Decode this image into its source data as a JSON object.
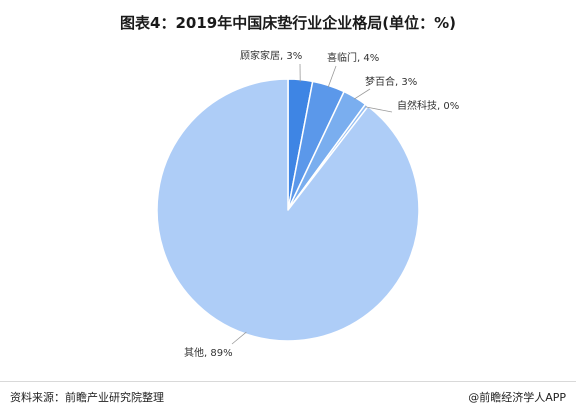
{
  "header": {
    "title": "图表4：2019年中国床垫行业企业格局(单位：%)"
  },
  "footer": {
    "source": "资料来源：前瞻产业研究院整理",
    "brand": "@前瞻经济学人APP"
  },
  "chart_data": {
    "type": "pie",
    "title": "图表4：2019年中国床垫行业企业格局(单位：%)",
    "start_angle_deg": 0,
    "direction": "clockwise",
    "legend": "none",
    "slices": [
      {
        "label": "顾家家居",
        "value": 3,
        "display": "顾家家居, 3%",
        "color": "#3e85e4"
      },
      {
        "label": "喜临门",
        "value": 4,
        "display": "喜临门, 4%",
        "color": "#5b98ea"
      },
      {
        "label": "梦百合",
        "value": 3,
        "display": "梦百合, 3%",
        "color": "#7aaeef"
      },
      {
        "label": "自然科技",
        "value": 0.4,
        "display": "自然科技, 0%",
        "color": "#92bdf3"
      },
      {
        "label": "其他",
        "value": 89,
        "display": "其他, 89%",
        "color": "#aecdf7"
      }
    ]
  }
}
